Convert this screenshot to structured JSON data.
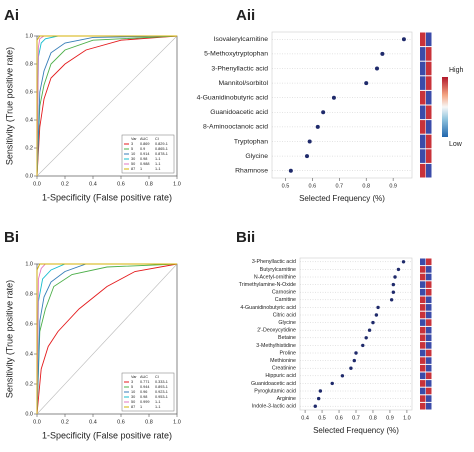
{
  "chart_data": [
    {
      "type": "roc",
      "panel": "Ai",
      "xlabel": "1-Specificity (False positive rate)",
      "ylabel": "Sensitivity (True positive rate)",
      "xlim": [
        0,
        1
      ],
      "ylim": [
        0,
        1
      ],
      "xticks": [
        {
          "value": 0,
          "label": "0.0"
        },
        0.2,
        0.4,
        0.6,
        0.8,
        {
          "value": 1,
          "label": "1.0"
        }
      ],
      "yticks": [
        {
          "value": 0,
          "label": "0.0"
        },
        0.2,
        0.4,
        0.6,
        0.8,
        {
          "value": 1,
          "label": "1.0"
        }
      ],
      "legend": "lower right",
      "legend_header": [
        "Var",
        "AUC",
        "CI"
      ],
      "series": [
        {
          "name": "3",
          "auc": 0.869,
          "ci": "0.829-1",
          "color": "#e41a1c",
          "x": [
            0,
            0.02,
            0.05,
            0.1,
            0.2,
            0.35,
            0.6,
            1
          ],
          "values": [
            0,
            0.35,
            0.55,
            0.7,
            0.8,
            0.9,
            0.97,
            1
          ]
        },
        {
          "name": "5",
          "auc": 0.9,
          "ci": "0.865-1",
          "color": "#4daf4a",
          "x": [
            0,
            0.02,
            0.05,
            0.1,
            0.2,
            0.4,
            1
          ],
          "values": [
            0,
            0.5,
            0.65,
            0.8,
            0.9,
            0.97,
            1
          ]
        },
        {
          "name": "10",
          "auc": 0.914,
          "ci": "0.878-1",
          "color": "#377eb8",
          "x": [
            0,
            0.02,
            0.05,
            0.1,
            0.2,
            0.4,
            1
          ],
          "values": [
            0,
            0.6,
            0.75,
            0.88,
            0.95,
            0.99,
            1
          ]
        },
        {
          "name": "30",
          "auc": 0.98,
          "ci": "1-1",
          "color": "#17becf",
          "x": [
            0,
            0.01,
            0.03,
            0.06,
            0.15,
            1
          ],
          "values": [
            0,
            0.85,
            0.95,
            0.98,
            1,
            1
          ]
        },
        {
          "name": "50",
          "auc": 0.988,
          "ci": "1-1",
          "color": "#e377c2",
          "x": [
            0,
            0.01,
            0.02,
            0.05,
            1
          ],
          "values": [
            0,
            0.92,
            0.98,
            1,
            1
          ]
        },
        {
          "name": "87",
          "auc": 1,
          "ci": "1-1",
          "color": "#d4b106",
          "x": [
            0,
            0,
            0.02,
            1
          ],
          "values": [
            0,
            0.97,
            1,
            1
          ]
        }
      ]
    },
    {
      "type": "dot",
      "panel": "Aii",
      "xlabel": "Selected Frequency (%)",
      "xlim": [
        0.45,
        0.97
      ],
      "xticks": [
        0.5,
        0.6,
        0.7,
        0.8,
        0.9
      ],
      "color": "#1f2a6b",
      "scale_labels": [
        "High",
        "Low"
      ],
      "categories": [
        "Isovalerylcarnitine",
        "5-Methoxytryptophan",
        "3-Phenyllactic acid",
        "Mannitol/sorbitol",
        "4-Guanidinobutyric acid",
        "Guanidoacetic acid",
        "8-Aminooctanoic acid",
        "Tryptophan",
        "Glycine",
        "Rhamnose"
      ],
      "values": [
        0.94,
        0.86,
        0.84,
        0.8,
        0.68,
        0.64,
        0.62,
        0.59,
        0.58,
        0.52
      ],
      "heat": [
        [
          "#c8323a",
          "#3b4ba8"
        ],
        [
          "#3b4ba8",
          "#c8323a"
        ],
        [
          "#3b4ba8",
          "#c8323a"
        ],
        [
          "#3b4ba8",
          "#c8323a"
        ],
        [
          "#c8323a",
          "#3b4ba8"
        ],
        [
          "#3b4ba8",
          "#c8323a"
        ],
        [
          "#c8323a",
          "#3b4ba8"
        ],
        [
          "#3b4ba8",
          "#c8323a"
        ],
        [
          "#3b4ba8",
          "#c8323a"
        ],
        [
          "#c8323a",
          "#3b4ba8"
        ]
      ]
    },
    {
      "type": "roc",
      "panel": "Bi",
      "xlabel": "1-Specificity (False positive rate)",
      "ylabel": "Sensitivity (True positive rate)",
      "xlim": [
        0,
        1
      ],
      "ylim": [
        0,
        1
      ],
      "xticks": [
        {
          "value": 0,
          "label": "0.0"
        },
        0.2,
        0.4,
        0.6,
        0.8,
        {
          "value": 1,
          "label": "1.0"
        }
      ],
      "yticks": [
        {
          "value": 0,
          "label": "0.0"
        },
        0.2,
        0.4,
        0.6,
        0.8,
        {
          "value": 1,
          "label": "1.0"
        }
      ],
      "legend": "lower right",
      "legend_header": [
        "Var",
        "AUC",
        "CI"
      ],
      "series": [
        {
          "name": "3",
          "auc": 0.771,
          "ci": "0.333-1",
          "color": "#e41a1c",
          "x": [
            0,
            0.03,
            0.08,
            0.15,
            0.3,
            0.5,
            0.7,
            1
          ],
          "values": [
            0,
            0.3,
            0.45,
            0.55,
            0.7,
            0.85,
            0.95,
            1
          ]
        },
        {
          "name": "5",
          "auc": 0.944,
          "ci": "0.893-1",
          "color": "#4daf4a",
          "x": [
            0,
            0.02,
            0.06,
            0.12,
            0.25,
            0.5,
            1
          ],
          "values": [
            0,
            0.55,
            0.7,
            0.85,
            0.93,
            0.98,
            1
          ]
        },
        {
          "name": "10",
          "auc": 0.96,
          "ci": "0.923-1",
          "color": "#377eb8",
          "x": [
            0,
            0.02,
            0.05,
            0.1,
            0.2,
            0.35,
            1
          ],
          "values": [
            0,
            0.62,
            0.78,
            0.88,
            0.95,
            1,
            1
          ]
        },
        {
          "name": "30",
          "auc": 0.98,
          "ci": "0.953-1",
          "color": "#17becf",
          "x": [
            0,
            0.01,
            0.04,
            0.1,
            0.2,
            1
          ],
          "values": [
            0,
            0.75,
            0.9,
            0.96,
            1,
            1
          ]
        },
        {
          "name": "50",
          "auc": 0.999,
          "ci": "1-1",
          "color": "#e377c2",
          "x": [
            0,
            0.01,
            0.03,
            0.06,
            1
          ],
          "values": [
            0,
            0.9,
            0.97,
            1,
            1
          ]
        },
        {
          "name": "87",
          "auc": 1,
          "ci": "1-1",
          "color": "#d4b106",
          "x": [
            0,
            0,
            0.02,
            1
          ],
          "values": [
            0,
            0.96,
            1,
            1
          ]
        }
      ]
    },
    {
      "type": "dot",
      "panel": "Bii",
      "xlabel": "Selected Frequency (%)",
      "xlim": [
        0.37,
        1.03
      ],
      "xticks": [
        0.4,
        0.5,
        0.6,
        0.7,
        0.8,
        0.9,
        {
          "value": 1,
          "label": "1.0"
        }
      ],
      "color": "#1f2a6b",
      "categories": [
        "3-Phenyllactic acid",
        "Butyrylcarnitine",
        "N-Acetyl-ornithine",
        "Trimethylamine-N-Oxide",
        "Carnosine",
        "Carnitine",
        "4-Guanidinobutyric acid",
        "Citric acid",
        "Glycine",
        "2'-Deoxycytidine",
        "Betaine",
        "3-Methylhistidine",
        "Proline",
        "Methionine",
        "Creatinine",
        "Hippuric acid",
        "Guanidoacetic acid",
        "Pyroglutamic acid",
        "Arginine",
        "Indole-3-lactic acid"
      ],
      "values": [
        0.98,
        0.95,
        0.93,
        0.92,
        0.92,
        0.91,
        0.83,
        0.82,
        0.8,
        0.78,
        0.76,
        0.74,
        0.7,
        0.69,
        0.67,
        0.62,
        0.56,
        0.49,
        0.48,
        0.46
      ],
      "heat": [
        [
          "#3b4ba8",
          "#c8323a"
        ],
        [
          "#c8323a",
          "#3b4ba8"
        ],
        [
          "#c8323a",
          "#3b4ba8"
        ],
        [
          "#3b4ba8",
          "#c8323a"
        ],
        [
          "#3b4ba8",
          "#c8323a"
        ],
        [
          "#c8323a",
          "#3b4ba8"
        ],
        [
          "#c8323a",
          "#3b4ba8"
        ],
        [
          "#c8323a",
          "#3b4ba8"
        ],
        [
          "#3b4ba8",
          "#c8323a"
        ],
        [
          "#c8323a",
          "#3b4ba8"
        ],
        [
          "#c8323a",
          "#3b4ba8"
        ],
        [
          "#c8323a",
          "#3b4ba8"
        ],
        [
          "#3b4ba8",
          "#c8323a"
        ],
        [
          "#c8323a",
          "#3b4ba8"
        ],
        [
          "#c8323a",
          "#3b4ba8"
        ],
        [
          "#3b4ba8",
          "#c8323a"
        ],
        [
          "#c8323a",
          "#3b4ba8"
        ],
        [
          "#3b4ba8",
          "#c8323a"
        ],
        [
          "#c8323a",
          "#3b4ba8"
        ],
        [
          "#c8323a",
          "#3b4ba8"
        ]
      ]
    }
  ]
}
